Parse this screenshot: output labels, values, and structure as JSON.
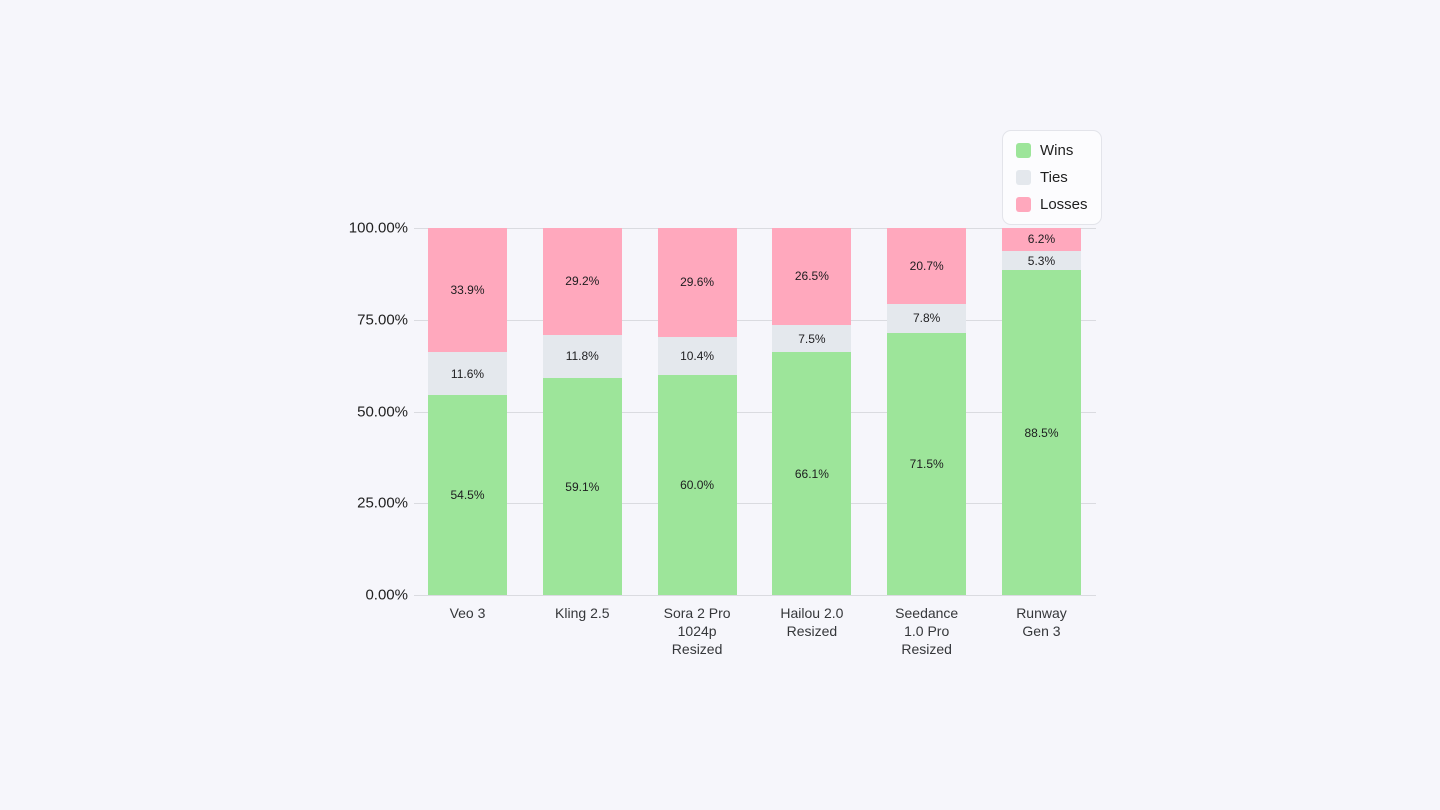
{
  "page": {
    "background_color": "#F6F6FB"
  },
  "chart_data": {
    "type": "bar",
    "stacked": true,
    "orientation": "vertical",
    "title": "",
    "xlabel": "",
    "ylabel": "",
    "ylim": [
      0,
      100
    ],
    "grid": true,
    "gridline_color": "#DADBE0",
    "categories": [
      "Veo 3",
      "Kling 2.5",
      "Sora 2 Pro\n1024p\nResized",
      "Hailou 2.0\nResized",
      "Seedance\n1.0 Pro\nResized",
      "Runway\nGen 3"
    ],
    "series": [
      {
        "name": "Wins",
        "color": "#9DE59A",
        "values": [
          54.5,
          59.1,
          60.0,
          66.1,
          71.5,
          88.5
        ],
        "labels": [
          "54.5%",
          "59.1%",
          "60.0%",
          "66.1%",
          "71.5%",
          "88.5%"
        ]
      },
      {
        "name": "Ties",
        "color": "#E4E8ED",
        "values": [
          11.6,
          11.8,
          10.4,
          7.5,
          7.8,
          5.3
        ],
        "labels": [
          "11.6%",
          "11.8%",
          "10.4%",
          "7.5%",
          "7.8%",
          "5.3%"
        ]
      },
      {
        "name": "Losses",
        "color": "#FFA8BD",
        "values": [
          33.9,
          29.2,
          29.6,
          26.5,
          20.7,
          6.2
        ],
        "labels": [
          "33.9%",
          "29.2%",
          "29.6%",
          "26.5%",
          "20.7%",
          "6.2%"
        ]
      }
    ],
    "y_ticks": [
      "100.00%",
      "75.00%",
      "50.00%",
      "25.00%",
      "0.00%"
    ],
    "legend": {
      "position": "top-right",
      "items": [
        {
          "label": "Wins",
          "color": "#9DE59A"
        },
        {
          "label": "Ties",
          "color": "#E4E8ED"
        },
        {
          "label": "Losses",
          "color": "#FFA8BD"
        }
      ]
    }
  }
}
